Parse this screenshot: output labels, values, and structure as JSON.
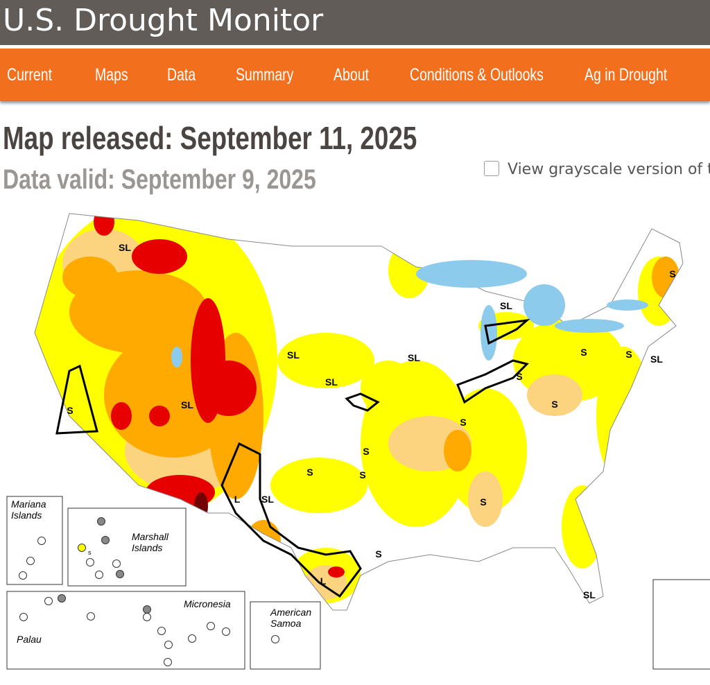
{
  "header": {
    "title": "U.S. Drought Monitor"
  },
  "nav": [
    "Current",
    "Maps",
    "Data",
    "Summary",
    "About",
    "Conditions & Outlooks",
    "Ag in Drought"
  ],
  "release": {
    "map_released": "Map released: September 11, 2025",
    "data_valid": "Data valid: September 9, 2025"
  },
  "grayscale_toggle": {
    "label": "View grayscale version of t"
  },
  "map": {
    "impact_labels": [
      "SL",
      "SL",
      "S",
      "SL",
      "SL",
      "S",
      "S",
      "SL",
      "SL",
      "S",
      "SL",
      "S",
      "S",
      "S",
      "S",
      "S",
      "S",
      "L",
      "SL",
      "S",
      "S",
      "L",
      "SL"
    ],
    "insets": [
      {
        "name": [
          "Mariana",
          "Islands"
        ]
      },
      {
        "name": [
          "Marshall",
          "Islands"
        ]
      },
      {
        "name": [
          "Micronesia"
        ]
      },
      {
        "name": [
          "Palau"
        ]
      },
      {
        "name": [
          "American",
          "Samoa"
        ]
      }
    ],
    "marshall_marker": "s"
  }
}
